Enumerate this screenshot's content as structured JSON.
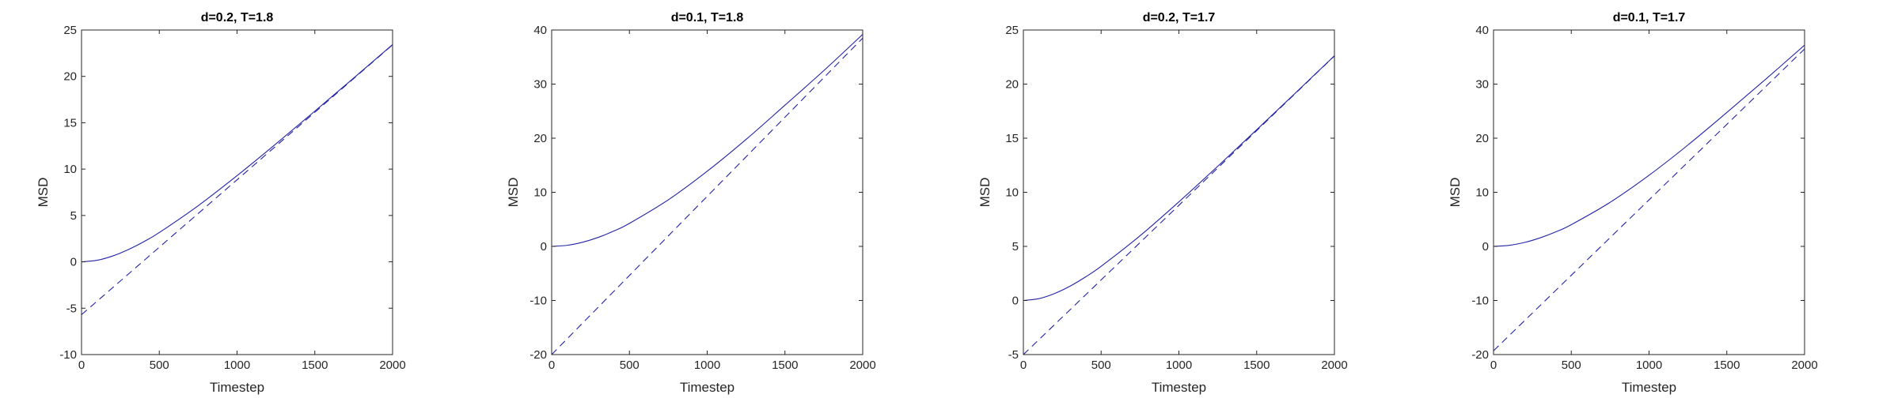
{
  "chart_data": [
    {
      "type": "line",
      "title": "d=0.2, T=1.8",
      "xlabel": "Timestep",
      "ylabel": "MSD",
      "xlim": [
        0,
        2000
      ],
      "ylim": [
        -10,
        25
      ],
      "xticks": [
        0,
        500,
        1000,
        1500,
        2000
      ],
      "yticks": [
        -10,
        -5,
        0,
        5,
        10,
        15,
        20,
        25
      ],
      "grid": false,
      "color": "#2323a6",
      "series": [
        {
          "style": "solid",
          "x": [
            0,
            100,
            200,
            300,
            400,
            500,
            750,
            1000,
            1250,
            1500,
            1750,
            2000
          ],
          "y": [
            0,
            0.17,
            0.63,
            1.32,
            2.17,
            3.16,
            6.05,
            9.29,
            12.72,
            16.25,
            19.82,
            23.43
          ]
        },
        {
          "style": "dashed",
          "x": [
            0,
            2000
          ],
          "y": [
            -5.7,
            23.4
          ]
        }
      ]
    },
    {
      "type": "line",
      "title": "d=0.1, T=1.8",
      "xlabel": "Timestep",
      "ylabel": "MSD",
      "xlim": [
        0,
        2000
      ],
      "ylim": [
        -20,
        40
      ],
      "xticks": [
        0,
        500,
        1000,
        1500,
        2000
      ],
      "yticks": [
        -20,
        -10,
        0,
        10,
        20,
        30,
        40
      ],
      "grid": false,
      "color": "#2323a6",
      "series": [
        {
          "style": "solid",
          "x": [
            0,
            100,
            200,
            300,
            400,
            500,
            750,
            1000,
            1250,
            1500,
            1750,
            2000
          ],
          "y": [
            0,
            0.2,
            0.78,
            1.67,
            2.84,
            4.25,
            8.61,
            13.89,
            19.77,
            26.1,
            32.5,
            39.2
          ]
        },
        {
          "style": "dashed",
          "x": [
            0,
            2000
          ],
          "y": [
            -20,
            38.5
          ]
        }
      ]
    },
    {
      "type": "line",
      "title": "d=0.2, T=1.7",
      "xlabel": "Timestep",
      "ylabel": "MSD",
      "xlim": [
        0,
        2000
      ],
      "ylim": [
        -5,
        25
      ],
      "xticks": [
        0,
        500,
        1000,
        1500,
        2000
      ],
      "yticks": [
        -5,
        0,
        5,
        10,
        15,
        20,
        25
      ],
      "grid": false,
      "color": "#2323a6",
      "series": [
        {
          "style": "solid",
          "x": [
            0,
            100,
            200,
            300,
            400,
            500,
            750,
            1000,
            1250,
            1500,
            1750,
            2000
          ],
          "y": [
            0,
            0.17,
            0.64,
            1.32,
            2.18,
            3.16,
            5.98,
            9.12,
            12.41,
            15.78,
            19.19,
            22.62
          ]
        },
        {
          "style": "dashed",
          "x": [
            0,
            2000
          ],
          "y": [
            -5,
            22.6
          ]
        }
      ]
    },
    {
      "type": "line",
      "title": "d=0.1, T=1.7",
      "xlabel": "Timestep",
      "ylabel": "MSD",
      "xlim": [
        0,
        2000
      ],
      "ylim": [
        -20,
        40
      ],
      "xticks": [
        0,
        500,
        1000,
        1500,
        2000
      ],
      "yticks": [
        -20,
        -10,
        0,
        10,
        20,
        30,
        40
      ],
      "grid": false,
      "color": "#2323a6",
      "series": [
        {
          "style": "solid",
          "x": [
            0,
            100,
            200,
            300,
            400,
            500,
            750,
            1000,
            1250,
            1500,
            1750,
            2000
          ],
          "y": [
            0,
            0.19,
            0.73,
            1.58,
            2.68,
            4.02,
            8.15,
            13.14,
            18.74,
            24.75,
            30.9,
            37.2
          ]
        },
        {
          "style": "dashed",
          "x": [
            0,
            2000
          ],
          "y": [
            -19.3,
            36.5
          ]
        }
      ]
    }
  ]
}
